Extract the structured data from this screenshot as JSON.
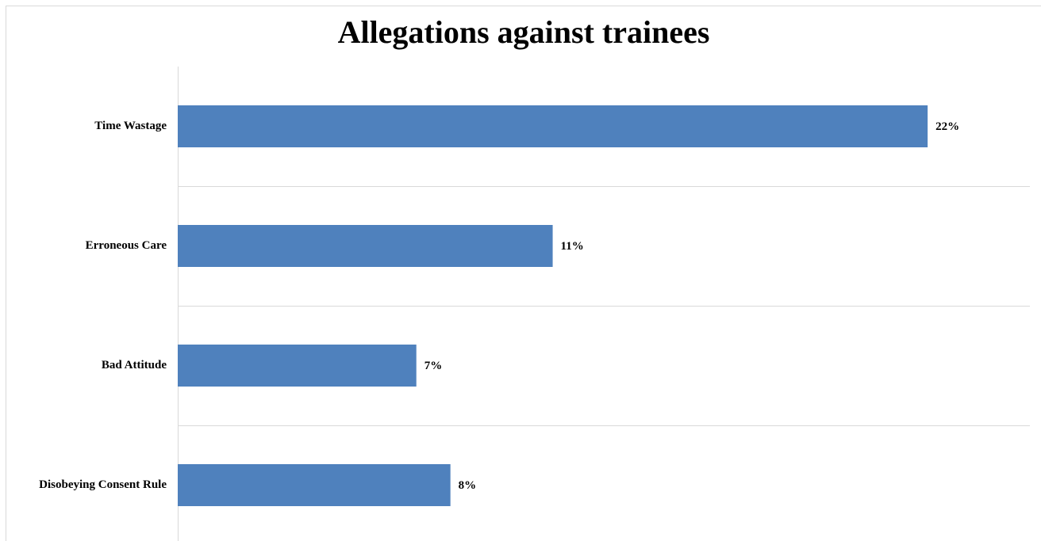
{
  "chart_data": {
    "type": "bar",
    "orientation": "horizontal",
    "title": "Allegations against trainees",
    "categories": [
      "Time Wastage",
      "Erroneous Care",
      "Bad Attitude",
      "Disobeying Consent Rule"
    ],
    "values": [
      22,
      11,
      7,
      8
    ],
    "value_labels": [
      "22%",
      "11%",
      "7%",
      "8%"
    ],
    "color": "#4f81bd",
    "xlim": [
      0,
      25
    ]
  }
}
